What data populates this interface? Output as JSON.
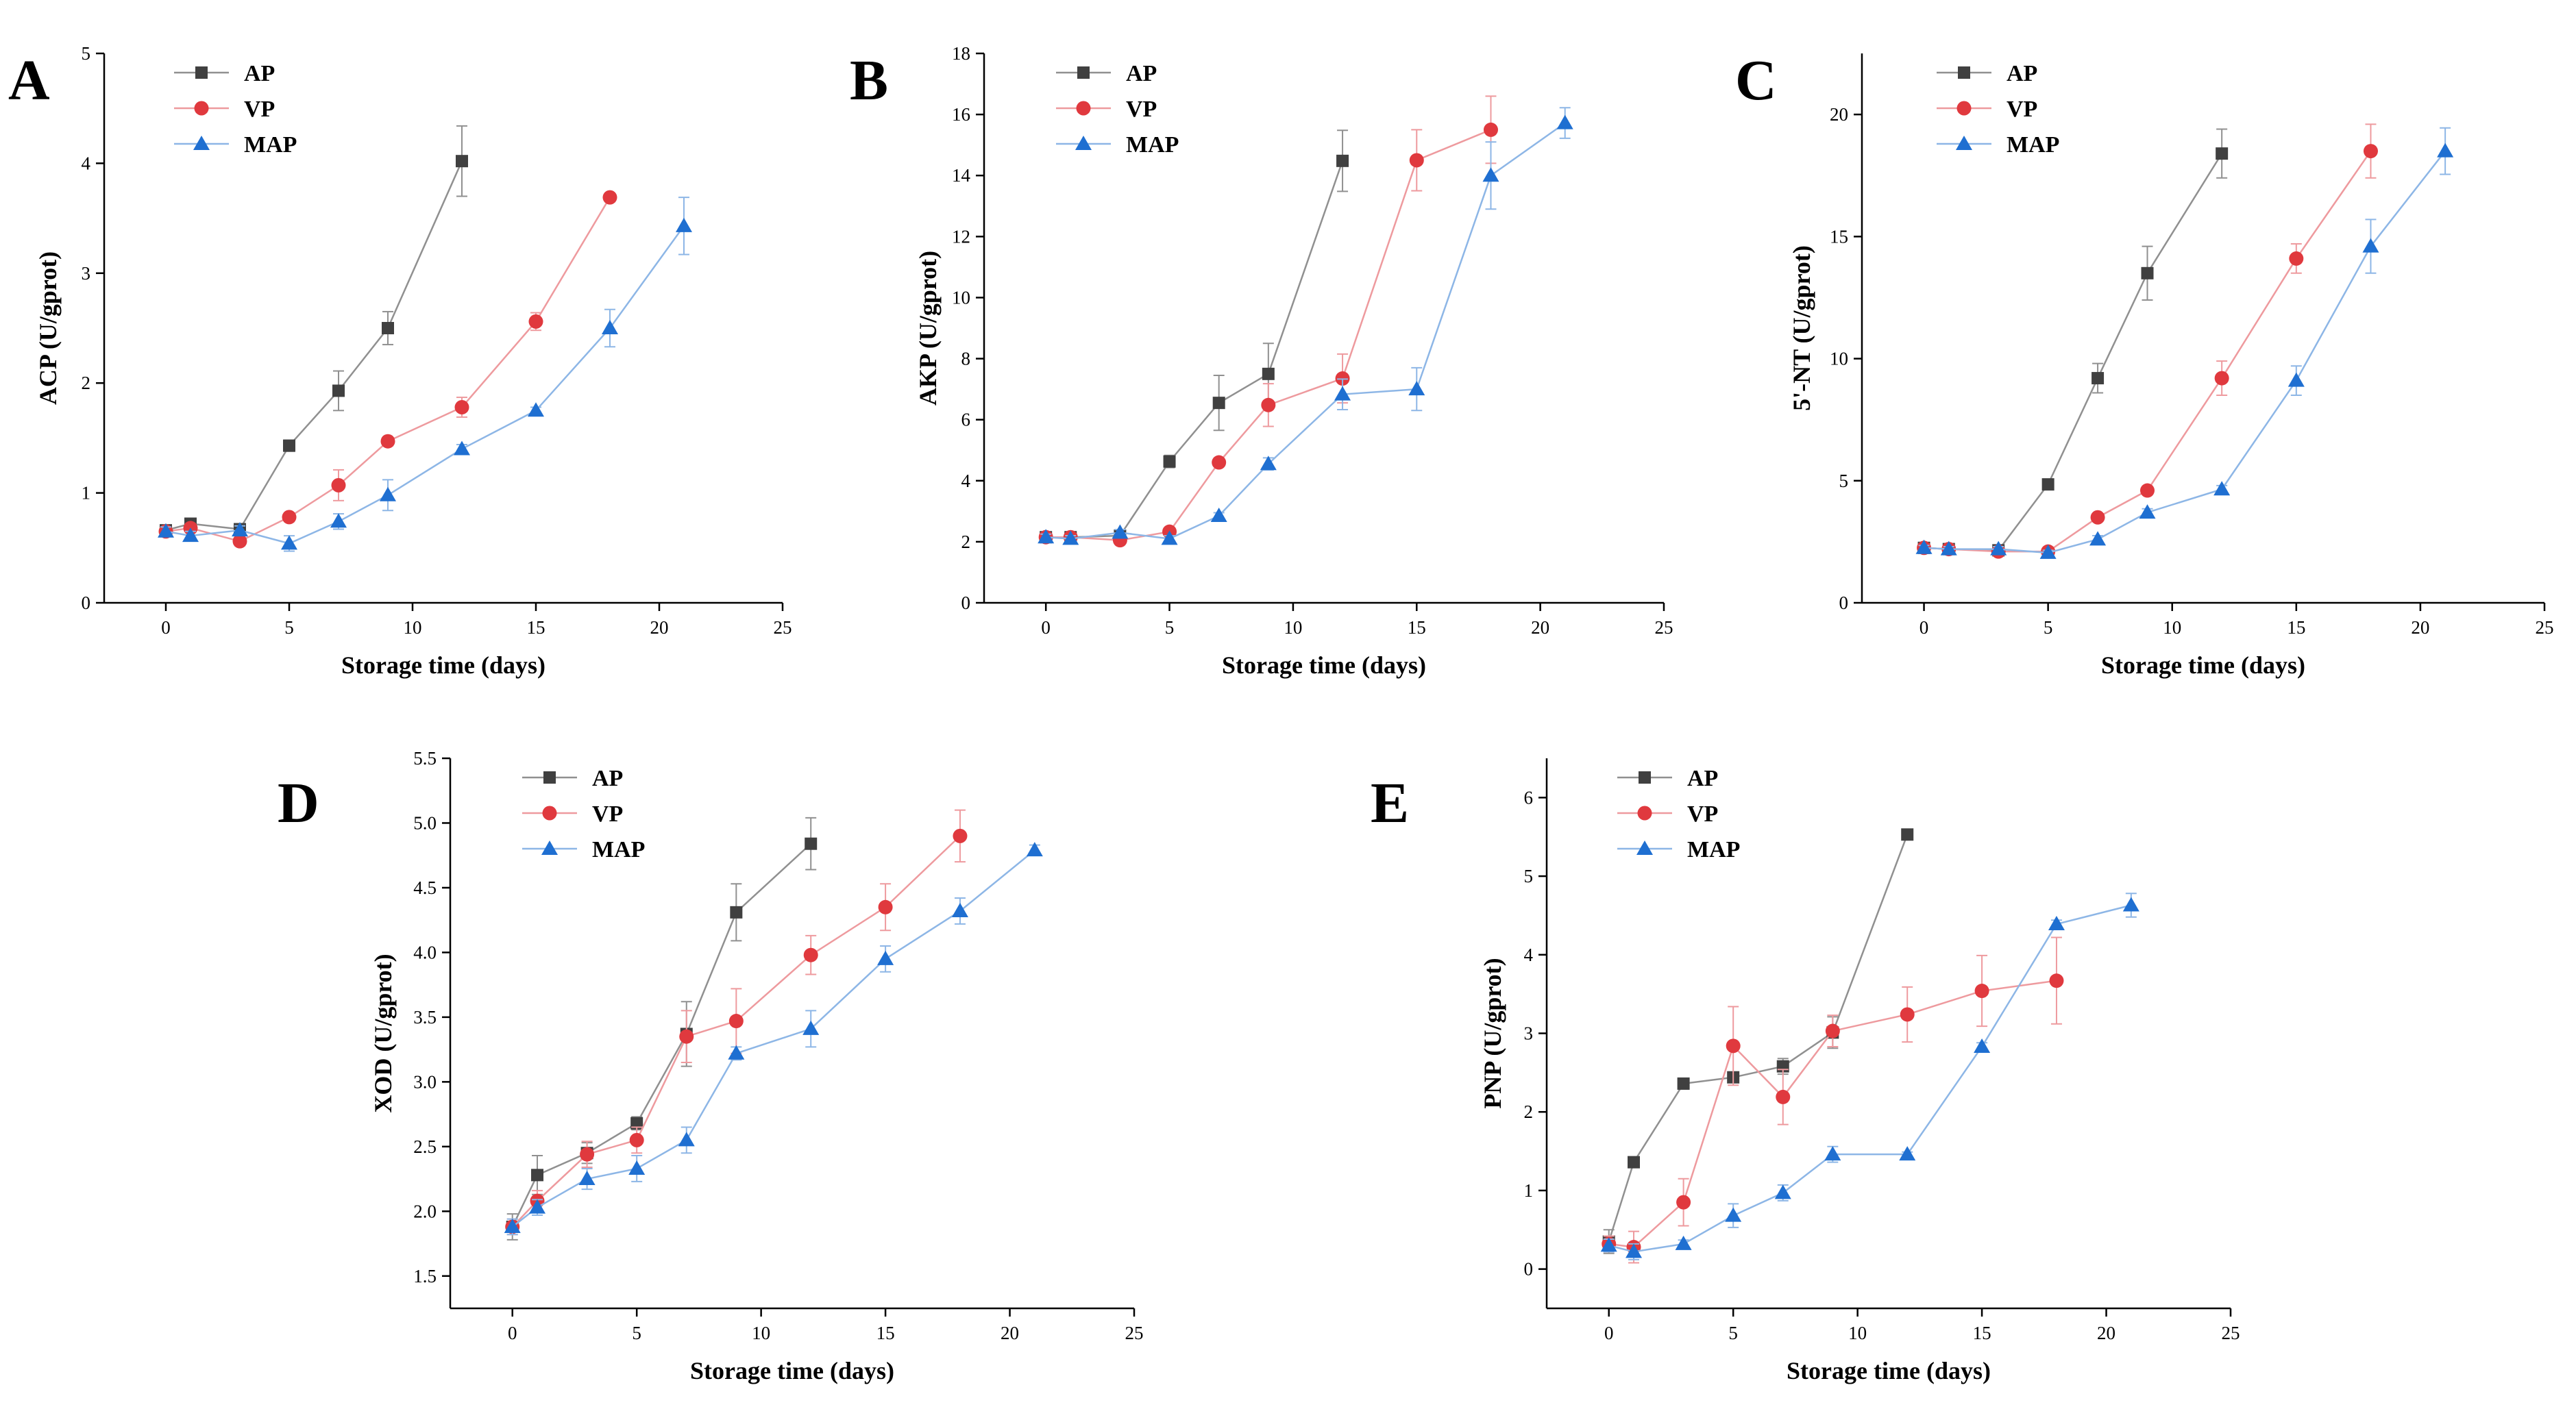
{
  "figure": {
    "panel_letters": [
      "A",
      "B",
      "C",
      "D",
      "E"
    ]
  },
  "series_styles": {
    "AP": {
      "marker": "square",
      "color": "#404040",
      "line_color": "#909090"
    },
    "VP": {
      "marker": "circle",
      "color": "#E0393E",
      "line_color": "#EE9A9E"
    },
    "MAP": {
      "marker": "triangle",
      "color": "#1F6FD1",
      "line_color": "#8DB6E6"
    }
  },
  "chart_data": [
    {
      "id": "A",
      "type": "line",
      "letter": "A",
      "xlabel": "Storage time (days)",
      "ylabel": "ACP (U/gprot)",
      "xlim": [
        -2.5,
        25
      ],
      "ylim": [
        0,
        5
      ],
      "xticks": [
        "0",
        "5",
        "10",
        "15",
        "20",
        "25"
      ],
      "xtick_values": [
        0,
        5,
        10,
        15,
        20,
        25
      ],
      "yticks": [
        "0",
        "1",
        "2",
        "3",
        "4",
        "5"
      ],
      "ytick_values": [
        0,
        1,
        2,
        3,
        4,
        5
      ],
      "legend": [
        "AP",
        "VP",
        "MAP"
      ],
      "series": [
        {
          "name": "AP",
          "x": [
            0,
            1,
            3,
            5,
            7,
            9,
            12
          ],
          "y": [
            0.66,
            0.72,
            0.67,
            1.43,
            1.93,
            2.5,
            4.02
          ],
          "err": [
            0.04,
            0.04,
            0.05,
            0.05,
            0.18,
            0.15,
            0.32
          ]
        },
        {
          "name": "VP",
          "x": [
            0,
            1,
            3,
            5,
            7,
            9,
            12,
            15,
            18
          ],
          "y": [
            0.65,
            0.68,
            0.56,
            0.78,
            1.07,
            1.47,
            1.78,
            2.56,
            3.69
          ],
          "err": [
            0.04,
            0.04,
            0.04,
            0.04,
            0.14,
            0.04,
            0.09,
            0.08,
            0.04
          ]
        },
        {
          "name": "MAP",
          "x": [
            0,
            1,
            3,
            5,
            7,
            9,
            12,
            15,
            18,
            21
          ],
          "y": [
            0.65,
            0.61,
            0.66,
            0.54,
            0.74,
            0.98,
            1.4,
            1.75,
            2.5,
            3.43
          ],
          "err": [
            0.04,
            0.04,
            0.04,
            0.07,
            0.07,
            0.14,
            0.04,
            0.03,
            0.17,
            0.26
          ]
        }
      ]
    },
    {
      "id": "B",
      "type": "line",
      "letter": "B",
      "xlabel": "Storage time (days)",
      "ylabel": "AKP (U/gprot)",
      "xlim": [
        -2.5,
        25
      ],
      "ylim": [
        0,
        18
      ],
      "xticks": [
        "0",
        "5",
        "10",
        "15",
        "20",
        "25"
      ],
      "xtick_values": [
        0,
        5,
        10,
        15,
        20,
        25
      ],
      "yticks": [
        "0",
        "2",
        "4",
        "6",
        "8",
        "10",
        "12",
        "14",
        "16",
        "18"
      ],
      "ytick_values": [
        0,
        2,
        4,
        6,
        8,
        10,
        12,
        14,
        16,
        18
      ],
      "legend": [
        "AP",
        "VP",
        "MAP"
      ],
      "series": [
        {
          "name": "AP",
          "x": [
            0,
            1,
            3,
            5,
            7,
            9,
            12
          ],
          "y": [
            2.15,
            2.15,
            2.2,
            4.63,
            6.55,
            7.5,
            14.48
          ],
          "err": [
            0.1,
            0.1,
            0.1,
            0.2,
            0.9,
            1.0,
            1.0
          ]
        },
        {
          "name": "VP",
          "x": [
            0,
            1,
            3,
            5,
            7,
            9,
            12,
            15,
            18
          ],
          "y": [
            2.15,
            2.15,
            2.05,
            2.33,
            4.6,
            6.48,
            7.35,
            14.5,
            15.5
          ],
          "err": [
            0.1,
            0.1,
            0.1,
            0.1,
            0.1,
            0.7,
            0.8,
            1.0,
            1.1
          ]
        },
        {
          "name": "MAP",
          "x": [
            0,
            1,
            3,
            5,
            7,
            9,
            12,
            15,
            18,
            21
          ],
          "y": [
            2.15,
            2.1,
            2.3,
            2.1,
            2.85,
            4.55,
            6.83,
            7.0,
            14.0,
            15.72
          ],
          "err": [
            0.1,
            0.1,
            0.1,
            0.1,
            0.1,
            0.2,
            0.5,
            0.7,
            1.1,
            0.5
          ]
        }
      ]
    },
    {
      "id": "C",
      "type": "line",
      "letter": "C",
      "xlabel": "Storage time (days)",
      "ylabel": "5'-NT (U/gprot)",
      "xlim": [
        -2.5,
        25
      ],
      "ylim": [
        0,
        22.5
      ],
      "xticks": [
        "0",
        "5",
        "10",
        "15",
        "20",
        "25"
      ],
      "xtick_values": [
        0,
        5,
        10,
        15,
        20,
        25
      ],
      "yticks": [
        "0",
        "5",
        "10",
        "15",
        "20"
      ],
      "ytick_values": [
        0,
        5,
        10,
        15,
        20
      ],
      "legend": [
        "AP",
        "VP",
        "MAP"
      ],
      "series": [
        {
          "name": "AP",
          "x": [
            0,
            1,
            3,
            5,
            7,
            9,
            12
          ],
          "y": [
            2.25,
            2.2,
            2.15,
            4.85,
            9.2,
            13.5,
            18.4
          ],
          "err": [
            0.1,
            0.1,
            0.1,
            0.15,
            0.6,
            1.1,
            1.0
          ]
        },
        {
          "name": "VP",
          "x": [
            0,
            1,
            3,
            5,
            7,
            9,
            12,
            15,
            18
          ],
          "y": [
            2.25,
            2.2,
            2.1,
            2.1,
            3.5,
            4.6,
            9.2,
            14.1,
            18.5
          ],
          "err": [
            0.1,
            0.1,
            0.1,
            0.1,
            0.15,
            0.15,
            0.7,
            0.6,
            1.1
          ]
        },
        {
          "name": "MAP",
          "x": [
            0,
            1,
            3,
            5,
            7,
            9,
            12,
            15,
            18,
            21
          ],
          "y": [
            2.25,
            2.2,
            2.2,
            2.05,
            2.6,
            3.7,
            4.65,
            9.1,
            14.6,
            18.5
          ],
          "err": [
            0.1,
            0.1,
            0.1,
            0.1,
            0.15,
            0.15,
            0.15,
            0.6,
            1.1,
            0.95
          ]
        }
      ]
    },
    {
      "id": "D",
      "type": "line",
      "letter": "D",
      "xlabel": "Storage time (days)",
      "ylabel": "XOD (U/gprot)",
      "xlim": [
        -2.5,
        25
      ],
      "ylim": [
        1.25,
        5.5
      ],
      "xticks": [
        "0",
        "5",
        "10",
        "15",
        "20",
        "25"
      ],
      "xtick_values": [
        0,
        5,
        10,
        15,
        20,
        25
      ],
      "yticks": [
        "1.5",
        "2.0",
        "2.5",
        "3.0",
        "3.5",
        "4.0",
        "4.5",
        "5.0",
        "5.5"
      ],
      "ytick_values": [
        1.5,
        2.0,
        2.5,
        3.0,
        3.5,
        4.0,
        4.5,
        5.0,
        5.5
      ],
      "legend": [
        "AP",
        "VP",
        "MAP"
      ],
      "series": [
        {
          "name": "AP",
          "x": [
            0,
            1,
            3,
            5,
            7,
            9,
            12
          ],
          "y": [
            1.88,
            2.28,
            2.45,
            2.68,
            3.37,
            4.31,
            4.84
          ],
          "err": [
            0.1,
            0.15,
            0.08,
            0.05,
            0.25,
            0.22,
            0.2
          ]
        },
        {
          "name": "VP",
          "x": [
            0,
            1,
            3,
            5,
            7,
            9,
            12,
            15,
            18
          ],
          "y": [
            1.88,
            2.08,
            2.44,
            2.55,
            3.35,
            3.47,
            3.98,
            4.35,
            4.9
          ],
          "err": [
            0.06,
            0.08,
            0.1,
            0.1,
            0.2,
            0.25,
            0.15,
            0.18,
            0.2
          ]
        },
        {
          "name": "MAP",
          "x": [
            0,
            1,
            3,
            5,
            7,
            9,
            12,
            15,
            18,
            21
          ],
          "y": [
            1.88,
            2.03,
            2.25,
            2.33,
            2.55,
            3.22,
            3.41,
            3.95,
            4.32,
            4.79
          ],
          "err": [
            0.06,
            0.06,
            0.08,
            0.1,
            0.1,
            0.05,
            0.14,
            0.1,
            0.1,
            0.04
          ]
        }
      ]
    },
    {
      "id": "E",
      "type": "line",
      "letter": "E",
      "xlabel": "Storage time (days)",
      "ylabel": "PNP (U/gprot)",
      "xlim": [
        -2.5,
        25
      ],
      "ylim": [
        -0.5,
        6.5
      ],
      "xticks": [
        "0",
        "5",
        "10",
        "15",
        "20",
        "25"
      ],
      "xtick_values": [
        0,
        5,
        10,
        15,
        20,
        25
      ],
      "yticks": [
        "0",
        "1",
        "2",
        "3",
        "4",
        "5",
        "6"
      ],
      "ytick_values": [
        0,
        1,
        2,
        3,
        4,
        5,
        6
      ],
      "legend": [
        "AP",
        "VP",
        "MAP"
      ],
      "series": [
        {
          "name": "AP",
          "x": [
            0,
            1,
            3,
            5,
            7,
            9,
            12
          ],
          "y": [
            0.35,
            1.36,
            2.36,
            2.44,
            2.58,
            3.01,
            5.53
          ],
          "err": [
            0.15,
            0.05,
            0.05,
            0.05,
            0.1,
            0.2,
            0.05
          ]
        },
        {
          "name": "VP",
          "x": [
            0,
            1,
            3,
            5,
            7,
            9,
            12,
            15,
            18
          ],
          "y": [
            0.32,
            0.28,
            0.85,
            2.84,
            2.19,
            3.03,
            3.24,
            3.54,
            3.67
          ],
          "err": [
            0.1,
            0.2,
            0.3,
            0.5,
            0.35,
            0.2,
            0.35,
            0.45,
            0.55
          ]
        },
        {
          "name": "MAP",
          "x": [
            0,
            1,
            3,
            5,
            7,
            9,
            12,
            15,
            18,
            21
          ],
          "y": [
            0.3,
            0.22,
            0.32,
            0.68,
            0.97,
            1.46,
            1.46,
            2.83,
            4.39,
            4.63
          ],
          "err": [
            0.08,
            0.1,
            0.05,
            0.15,
            0.1,
            0.1,
            0.03,
            0.05,
            0.05,
            0.15
          ]
        }
      ]
    }
  ]
}
